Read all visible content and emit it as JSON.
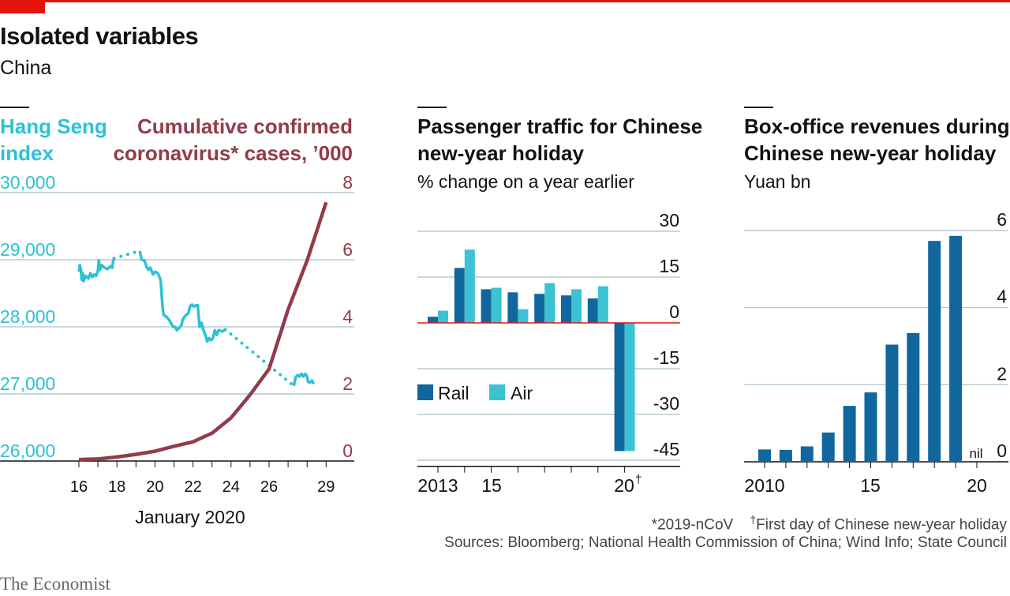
{
  "header": {
    "title": "Isolated variables",
    "subtitle": "China"
  },
  "footer": {
    "note1": "*2019-nCoV",
    "note2_mark": "†",
    "note2": "First day of Chinese new-year holiday",
    "sources": "Sources: Bloomberg; National Health Commission of China; Wind Info; State Council",
    "brand": "The Economist"
  },
  "colors": {
    "accent_red": "#e3120b",
    "hang_seng": "#2cc2d4",
    "cases": "#923b4a",
    "rail": "#10679e",
    "air": "#3bc3d4",
    "box_office": "#10679e",
    "grid": "#a9bfcc"
  },
  "chart_data": [
    {
      "type": "line",
      "left_label_line1": "Hang Seng",
      "left_label_line2": "index",
      "right_label_line1": "Cumulative confirmed",
      "right_label_line2": "coronavirus* cases, ’000",
      "xlabel": "January 2020",
      "x_ticks": [
        "16",
        "18",
        "20",
        "22",
        "24",
        "26",
        "29"
      ],
      "x_tick_days": [
        16,
        18,
        20,
        22,
        24,
        26,
        29
      ],
      "xlim": [
        15.3,
        29.8
      ],
      "left_ticks": [
        "30,000",
        "29,000",
        "28,000",
        "27,000",
        "26,000"
      ],
      "right_ticks": [
        "8",
        "6",
        "4",
        "2",
        "0"
      ],
      "y_left_lim": [
        26000,
        30000
      ],
      "y_right_lim": [
        0,
        8
      ],
      "series": [
        {
          "name": "Hang Seng index",
          "axis": "left",
          "style": "intraday",
          "segments": [
            {
              "solid": true,
              "points": [
                [
                  16.0,
                  28820
                ],
                [
                  16.05,
                  28920
                ],
                [
                  16.1,
                  28860
                ],
                [
                  16.15,
                  28700
                ],
                [
                  16.2,
                  28800
                ],
                [
                  16.25,
                  28680
                ],
                [
                  16.35,
                  28760
                ],
                [
                  16.5,
                  28720
                ],
                [
                  16.6,
                  28800
                ],
                [
                  16.7,
                  28740
                ],
                [
                  16.8,
                  28780
                ],
                [
                  16.9,
                  28760
                ],
                [
                  17.0,
                  28830
                ],
                [
                  17.05,
                  28990
                ],
                [
                  17.1,
                  28850
                ],
                [
                  17.2,
                  28920
                ],
                [
                  17.35,
                  28880
                ],
                [
                  17.5,
                  28860
                ],
                [
                  17.65,
                  28900
                ],
                [
                  17.75,
                  28880
                ],
                [
                  17.8,
                  28980
                ],
                [
                  17.85,
                  29020
                ]
              ]
            },
            {
              "solid": false,
              "points": [
                [
                  17.85,
                  29020
                ],
                [
                  19.2,
                  29130
                ]
              ]
            },
            {
              "solid": true,
              "points": [
                [
                  19.2,
                  29130
                ],
                [
                  19.3,
                  29000
                ],
                [
                  19.45,
                  28990
                ],
                [
                  19.55,
                  28900
                ],
                [
                  19.65,
                  28850
                ],
                [
                  19.75,
                  28880
                ],
                [
                  19.9,
                  28780
                ],
                [
                  20.0,
                  28820
                ],
                [
                  20.15,
                  28800
                ],
                [
                  20.3,
                  28700
                ],
                [
                  20.4,
                  28300
                ],
                [
                  20.45,
                  28180
                ],
                [
                  20.6,
                  28150
                ],
                [
                  20.75,
                  28100
                ],
                [
                  20.95,
                  28000
                ],
                [
                  21.05,
                  28000
                ],
                [
                  21.15,
                  27950
                ],
                [
                  21.3,
                  27990
                ],
                [
                  21.4,
                  28030
                ],
                [
                  21.45,
                  28100
                ],
                [
                  21.55,
                  28150
                ],
                [
                  21.65,
                  28180
                ],
                [
                  21.75,
                  28200
                ],
                [
                  21.85,
                  28310
                ],
                [
                  21.95,
                  28330
                ],
                [
                  22.05,
                  28300
                ],
                [
                  22.15,
                  28320
                ],
                [
                  22.25,
                  28320
                ],
                [
                  22.3,
                  28150
                ],
                [
                  22.35,
                  28000
                ],
                [
                  22.45,
                  28060
                ],
                [
                  22.55,
                  27950
                ],
                [
                  22.65,
                  27880
                ],
                [
                  22.75,
                  27780
                ],
                [
                  22.85,
                  27830
                ],
                [
                  22.95,
                  27800
                ],
                [
                  23.05,
                  27830
                ],
                [
                  23.15,
                  27950
                ],
                [
                  23.25,
                  27880
                ],
                [
                  23.35,
                  27950
                ],
                [
                  23.55,
                  27930
                ],
                [
                  23.7,
                  27960
                ]
              ]
            },
            {
              "solid": false,
              "points": [
                [
                  23.7,
                  27960
                ],
                [
                  27.3,
                  27120
                ]
              ]
            },
            {
              "solid": true,
              "points": [
                [
                  27.3,
                  27120
                ],
                [
                  27.4,
                  27250
                ],
                [
                  27.5,
                  27280
                ],
                [
                  27.6,
                  27260
                ],
                [
                  27.7,
                  27300
                ],
                [
                  27.8,
                  27260
                ],
                [
                  27.9,
                  27300
                ],
                [
                  28.0,
                  27260
                ],
                [
                  28.05,
                  27180
                ],
                [
                  28.15,
                  27170
                ],
                [
                  28.25,
                  27200
                ],
                [
                  28.35,
                  27150
                ]
              ]
            }
          ]
        },
        {
          "name": "Cumulative confirmed coronavirus* cases, ’000",
          "axis": "right",
          "points": [
            [
              16,
              0.045
            ],
            [
              17,
              0.062
            ],
            [
              18,
              0.121
            ],
            [
              19,
              0.198
            ],
            [
              20,
              0.291
            ],
            [
              21,
              0.44
            ],
            [
              22,
              0.571
            ],
            [
              23,
              0.83
            ],
            [
              24,
              1.287
            ],
            [
              25,
              1.975
            ],
            [
              26,
              2.744
            ],
            [
              27,
              4.515
            ],
            [
              28,
              5.974
            ],
            [
              29,
              7.711
            ]
          ]
        }
      ]
    },
    {
      "type": "bar",
      "title_line1": "Passenger traffic for Chinese",
      "title_line2": "new-year holiday",
      "subtitle": "% change on a year earlier",
      "y_ticks": [
        "30",
        "15",
        "0",
        "-15",
        "-30",
        "-45"
      ],
      "y_tick_values": [
        30,
        15,
        0,
        -15,
        -30,
        -45
      ],
      "ylim": [
        -47,
        30
      ],
      "x_tick_labels": [
        "2013",
        "15",
        "20"
      ],
      "x_tick_mark": "†",
      "years": [
        2013,
        2014,
        2015,
        2016,
        2017,
        2018,
        2019,
        2020
      ],
      "series": [
        {
          "name": "Rail",
          "values": [
            2,
            18,
            11,
            10,
            9.5,
            9,
            8,
            -42
          ]
        },
        {
          "name": "Air",
          "values": [
            4,
            24,
            11.5,
            4.5,
            13,
            11,
            12,
            -42
          ]
        }
      ]
    },
    {
      "type": "bar",
      "title_line1": "Box-office revenues during",
      "title_line2": "Chinese new-year holiday",
      "subtitle": "Yuan bn",
      "y_ticks": [
        "6",
        "4",
        "2",
        "0"
      ],
      "y_tick_values": [
        6,
        4,
        2,
        0
      ],
      "ylim": [
        0,
        6
      ],
      "x_tick_labels": [
        "2010",
        "15",
        "20"
      ],
      "zero_note": "nil",
      "years": [
        2010,
        2011,
        2012,
        2013,
        2014,
        2015,
        2016,
        2017,
        2018,
        2019,
        2020
      ],
      "values": [
        0.32,
        0.31,
        0.4,
        0.76,
        1.45,
        1.8,
        3.04,
        3.34,
        5.73,
        5.86,
        0
      ]
    }
  ]
}
